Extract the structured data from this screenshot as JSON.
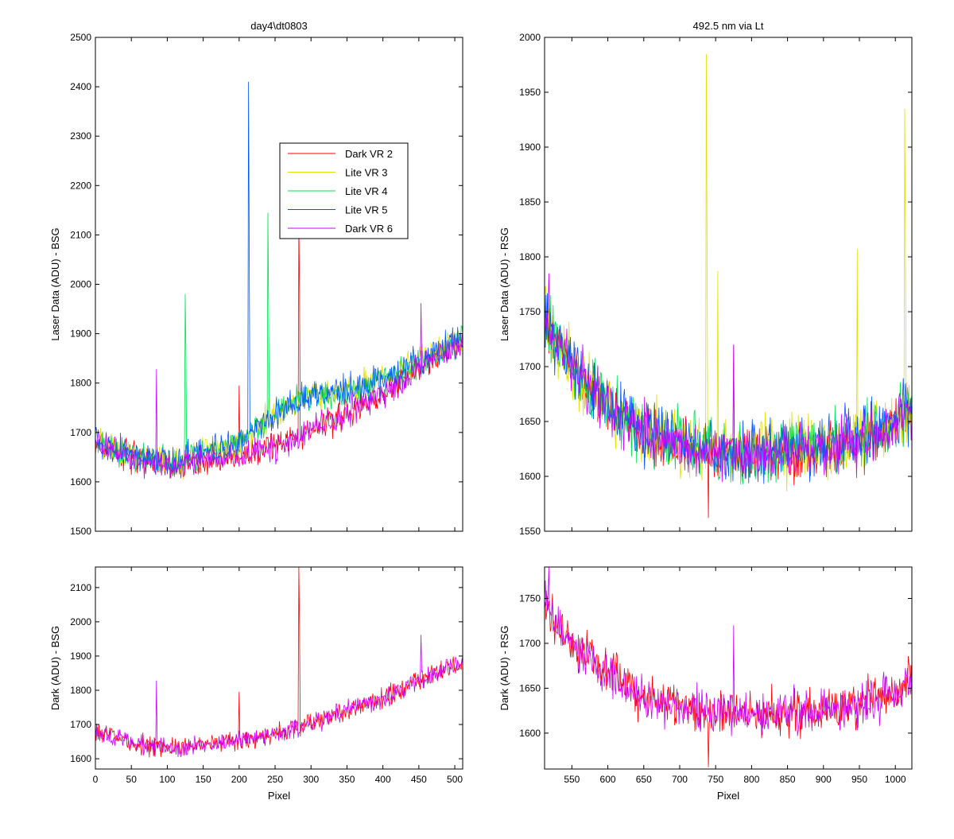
{
  "figure": {
    "background": "#ffffff"
  },
  "chart_data": [
    {
      "type": "line",
      "title": "day4\\dt0803",
      "xlabel": "",
      "ylabel": "Laser Data (ADU) - BSG",
      "xlim": [
        0,
        511
      ],
      "ylim": [
        1500,
        2500
      ],
      "yticks": [
        1500,
        1600,
        1700,
        1800,
        1900,
        2000,
        2100,
        2200,
        2300,
        2400,
        2500
      ],
      "xticks": [
        0,
        50,
        100,
        150,
        200,
        250,
        300,
        350,
        400,
        450,
        500
      ],
      "show_xtick_labels": false,
      "legend": {
        "placement": "top-right-inside"
      },
      "x_range": [
        0,
        511
      ],
      "series": [
        {
          "name": "Dark VR 2",
          "color": "#ff0000",
          "noise": 14,
          "seed": 2,
          "baseline": [
            [
              0,
              1680
            ],
            [
              50,
              1650
            ],
            [
              110,
              1630
            ],
            [
              150,
              1642
            ],
            [
              200,
              1655
            ],
            [
              250,
              1670
            ],
            [
              300,
              1705
            ],
            [
              350,
              1740
            ],
            [
              400,
              1775
            ],
            [
              450,
              1830
            ],
            [
              511,
              1885
            ]
          ],
          "spikes": [
            [
              200,
              1795
            ],
            [
              283,
              2130
            ],
            [
              284,
              1985
            ]
          ]
        },
        {
          "name": "Lite VR 3",
          "color": "#e0e000",
          "noise": 15,
          "seed": 3,
          "baseline": [
            [
              0,
              1680
            ],
            [
              50,
              1655
            ],
            [
              110,
              1640
            ],
            [
              150,
              1660
            ],
            [
              200,
              1680
            ],
            [
              215,
              1700
            ],
            [
              240,
              1725
            ],
            [
              260,
              1750
            ],
            [
              300,
              1775
            ],
            [
              350,
              1785
            ],
            [
              400,
              1805
            ],
            [
              450,
              1845
            ],
            [
              511,
              1890
            ]
          ],
          "spikes": [
            [
              241,
              1770
            ],
            [
              280,
              1785
            ]
          ]
        },
        {
          "name": "Lite VR 4",
          "color": "#00dd55",
          "noise": 15,
          "seed": 4,
          "baseline": [
            [
              0,
              1680
            ],
            [
              50,
              1655
            ],
            [
              110,
              1640
            ],
            [
              150,
              1660
            ],
            [
              200,
              1680
            ],
            [
              215,
              1700
            ],
            [
              240,
              1725
            ],
            [
              260,
              1750
            ],
            [
              300,
              1775
            ],
            [
              350,
              1785
            ],
            [
              400,
              1805
            ],
            [
              450,
              1845
            ],
            [
              511,
              1890
            ]
          ],
          "spikes": [
            [
              125,
              1980
            ],
            [
              126,
              1855
            ],
            [
              240,
              2145
            ],
            [
              241,
              1945
            ]
          ]
        },
        {
          "name": "Lite VR 5",
          "color": "#0055ff",
          "noise": 15,
          "seed": 5,
          "baseline": [
            [
              0,
              1680
            ],
            [
              50,
              1655
            ],
            [
              110,
              1640
            ],
            [
              150,
              1660
            ],
            [
              200,
              1680
            ],
            [
              215,
              1700
            ],
            [
              240,
              1725
            ],
            [
              260,
              1750
            ],
            [
              300,
              1775
            ],
            [
              350,
              1785
            ],
            [
              400,
              1805
            ],
            [
              450,
              1845
            ],
            [
              511,
              1890
            ]
          ],
          "spikes": [
            [
              213,
              2410
            ],
            [
              214,
              2085
            ]
          ]
        },
        {
          "name": "Dark VR 6",
          "color": "#cc00ff",
          "noise": 14,
          "seed": 6,
          "baseline": [
            [
              0,
              1680
            ],
            [
              50,
              1650
            ],
            [
              110,
              1630
            ],
            [
              150,
              1642
            ],
            [
              200,
              1655
            ],
            [
              250,
              1670
            ],
            [
              300,
              1705
            ],
            [
              350,
              1740
            ],
            [
              400,
              1775
            ],
            [
              450,
              1830
            ],
            [
              511,
              1885
            ]
          ],
          "spikes": [
            [
              85,
              1828
            ],
            [
              453,
              1962
            ]
          ]
        }
      ]
    },
    {
      "type": "line",
      "title": "492.5 nm via Lt",
      "xlabel": "",
      "ylabel": "Laser Data (ADU) - RSG",
      "xlim": [
        512,
        1023
      ],
      "ylim": [
        1550,
        2000
      ],
      "yticks": [
        1550,
        1600,
        1650,
        1700,
        1750,
        1800,
        1850,
        1900,
        1950,
        2000
      ],
      "xticks": [
        550,
        600,
        650,
        700,
        750,
        800,
        850,
        900,
        950,
        1000
      ],
      "show_xtick_labels": false,
      "x_range": [
        512,
        1023
      ],
      "series": [
        {
          "name": "Dark VR 2",
          "color": "#ff0000",
          "noise": 12,
          "seed": 12,
          "baseline": [
            [
              512,
              1745
            ],
            [
              550,
              1700
            ],
            [
              600,
              1665
            ],
            [
              650,
              1640
            ],
            [
              700,
              1628
            ],
            [
              750,
              1622
            ],
            [
              800,
              1620
            ],
            [
              850,
              1622
            ],
            [
              900,
              1625
            ],
            [
              950,
              1630
            ],
            [
              1000,
              1648
            ],
            [
              1023,
              1660
            ]
          ],
          "spikes": [
            [
              740,
              1562
            ],
            [
              775,
              1720
            ]
          ]
        },
        {
          "name": "Lite VR 3",
          "color": "#e0e000",
          "noise": 14,
          "seed": 13,
          "baseline": [
            [
              512,
              1745
            ],
            [
              550,
              1700
            ],
            [
              600,
              1665
            ],
            [
              650,
              1642
            ],
            [
              700,
              1630
            ],
            [
              750,
              1625
            ],
            [
              800,
              1622
            ],
            [
              850,
              1625
            ],
            [
              900,
              1628
            ],
            [
              950,
              1635
            ],
            [
              1000,
              1650
            ],
            [
              1023,
              1665
            ]
          ],
          "spikes": [
            [
              737,
              1985
            ],
            [
              738,
              1832
            ],
            [
              753,
              1787
            ],
            [
              947,
              1807
            ],
            [
              1013,
              1935
            ],
            [
              1014,
              1815
            ]
          ]
        },
        {
          "name": "Lite VR 4",
          "color": "#00dd55",
          "noise": 14,
          "seed": 14,
          "baseline": [
            [
              512,
              1745
            ],
            [
              550,
              1700
            ],
            [
              600,
              1665
            ],
            [
              650,
              1642
            ],
            [
              700,
              1630
            ],
            [
              750,
              1625
            ],
            [
              800,
              1622
            ],
            [
              850,
              1625
            ],
            [
              900,
              1628
            ],
            [
              950,
              1635
            ],
            [
              1000,
              1650
            ],
            [
              1023,
              1665
            ]
          ],
          "spikes": []
        },
        {
          "name": "Lite VR 5",
          "color": "#0055ff",
          "noise": 14,
          "seed": 15,
          "baseline": [
            [
              512,
              1745
            ],
            [
              550,
              1700
            ],
            [
              600,
              1665
            ],
            [
              650,
              1642
            ],
            [
              700,
              1630
            ],
            [
              750,
              1625
            ],
            [
              800,
              1622
            ],
            [
              850,
              1625
            ],
            [
              900,
              1628
            ],
            [
              950,
              1635
            ],
            [
              1000,
              1650
            ],
            [
              1023,
              1665
            ]
          ],
          "spikes": []
        },
        {
          "name": "Dark VR 6",
          "color": "#cc00ff",
          "noise": 12,
          "seed": 16,
          "baseline": [
            [
              512,
              1745
            ],
            [
              550,
              1700
            ],
            [
              600,
              1665
            ],
            [
              650,
              1640
            ],
            [
              700,
              1628
            ],
            [
              750,
              1622
            ],
            [
              800,
              1620
            ],
            [
              850,
              1622
            ],
            [
              900,
              1625
            ],
            [
              950,
              1630
            ],
            [
              1000,
              1648
            ],
            [
              1023,
              1660
            ]
          ],
          "spikes": [
            [
              518,
              1785
            ],
            [
              775,
              1720
            ]
          ]
        }
      ]
    },
    {
      "type": "line",
      "title": "",
      "xlabel": "Pixel",
      "ylabel": "Dark (ADU) - BSG",
      "xlim": [
        0,
        511
      ],
      "ylim": [
        1570,
        2160
      ],
      "yticks": [
        1600,
        1700,
        1800,
        1900,
        2000,
        2100
      ],
      "xticks": [
        0,
        50,
        100,
        150,
        200,
        250,
        300,
        350,
        400,
        450,
        500
      ],
      "show_xtick_labels": true,
      "x_range": [
        0,
        511
      ],
      "series": [
        {
          "name": "Dark VR 2",
          "color": "#ff0000",
          "noise": 14,
          "seed": 22,
          "baseline": [
            [
              0,
              1680
            ],
            [
              50,
              1650
            ],
            [
              110,
              1630
            ],
            [
              150,
              1642
            ],
            [
              200,
              1655
            ],
            [
              250,
              1670
            ],
            [
              300,
              1705
            ],
            [
              350,
              1740
            ],
            [
              400,
              1775
            ],
            [
              450,
              1830
            ],
            [
              511,
              1885
            ]
          ],
          "spikes": [
            [
              200,
              1795
            ],
            [
              283,
              2160
            ],
            [
              284,
              1985
            ]
          ]
        },
        {
          "name": "Dark VR 6",
          "color": "#cc00ff",
          "noise": 14,
          "seed": 26,
          "baseline": [
            [
              0,
              1680
            ],
            [
              50,
              1650
            ],
            [
              110,
              1630
            ],
            [
              150,
              1642
            ],
            [
              200,
              1655
            ],
            [
              250,
              1670
            ],
            [
              300,
              1705
            ],
            [
              350,
              1740
            ],
            [
              400,
              1775
            ],
            [
              450,
              1830
            ],
            [
              511,
              1885
            ]
          ],
          "spikes": [
            [
              85,
              1828
            ],
            [
              453,
              1962
            ]
          ]
        }
      ]
    },
    {
      "type": "line",
      "title": "",
      "xlabel": "Pixel",
      "ylabel": "Dark (ADU) - RSG",
      "xlim": [
        512,
        1023
      ],
      "ylim": [
        1560,
        1785
      ],
      "yticks": [
        1600,
        1650,
        1700,
        1750
      ],
      "xticks": [
        550,
        600,
        650,
        700,
        750,
        800,
        850,
        900,
        950,
        1000
      ],
      "show_xtick_labels": true,
      "x_range": [
        512,
        1023
      ],
      "series": [
        {
          "name": "Dark VR 2",
          "color": "#ff0000",
          "noise": 12,
          "seed": 32,
          "baseline": [
            [
              512,
              1745
            ],
            [
              550,
              1700
            ],
            [
              600,
              1665
            ],
            [
              650,
              1640
            ],
            [
              700,
              1628
            ],
            [
              750,
              1622
            ],
            [
              800,
              1620
            ],
            [
              850,
              1622
            ],
            [
              900,
              1625
            ],
            [
              950,
              1630
            ],
            [
              1000,
              1648
            ],
            [
              1023,
              1660
            ]
          ],
          "spikes": [
            [
              740,
              1562
            ]
          ]
        },
        {
          "name": "Dark VR 6",
          "color": "#cc00ff",
          "noise": 12,
          "seed": 36,
          "baseline": [
            [
              512,
              1745
            ],
            [
              550,
              1700
            ],
            [
              600,
              1665
            ],
            [
              650,
              1640
            ],
            [
              700,
              1628
            ],
            [
              750,
              1622
            ],
            [
              800,
              1620
            ],
            [
              850,
              1622
            ],
            [
              900,
              1625
            ],
            [
              950,
              1630
            ],
            [
              1000,
              1648
            ],
            [
              1023,
              1660
            ]
          ],
          "spikes": [
            [
              518,
              1785
            ],
            [
              775,
              1720
            ]
          ]
        }
      ]
    }
  ]
}
